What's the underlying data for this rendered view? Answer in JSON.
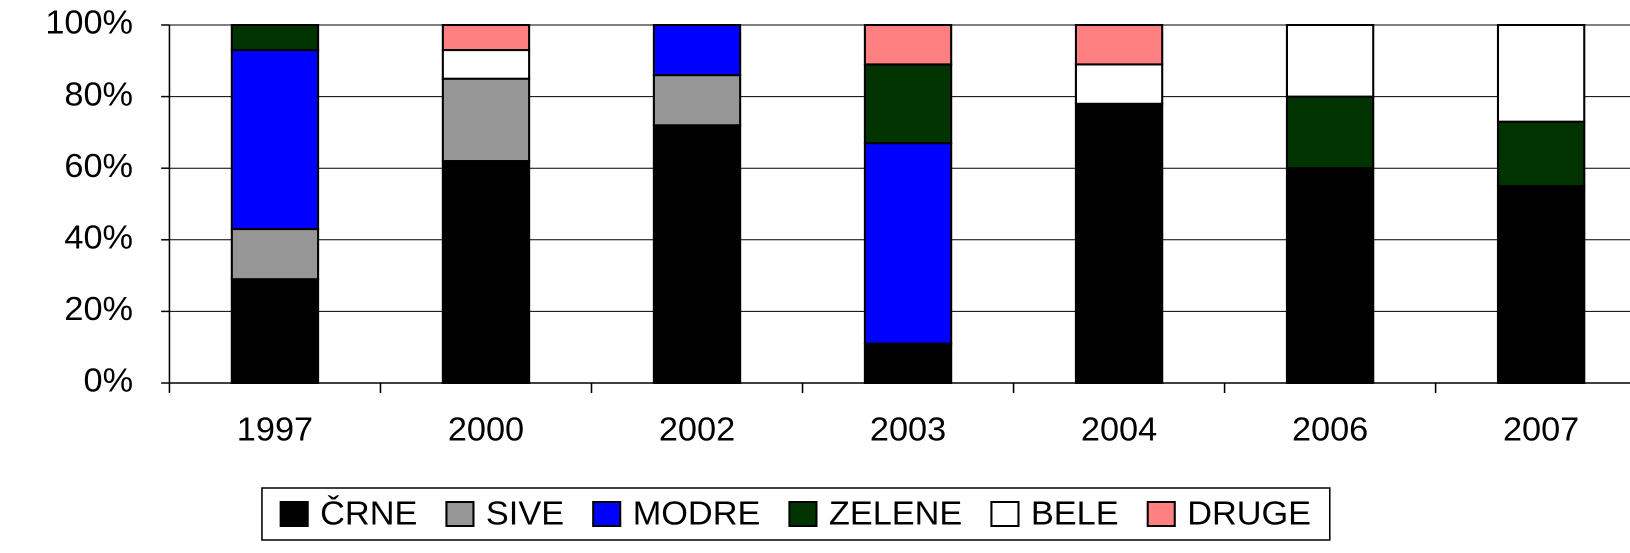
{
  "chart_data": {
    "type": "stacked_bar",
    "categories": [
      "1997",
      "2000",
      "2002",
      "2003",
      "2004",
      "2006",
      "2007"
    ],
    "series": [
      {
        "name": "ČRNE",
        "color": "#000000",
        "values": [
          29,
          62,
          72,
          11,
          78,
          60,
          55
        ]
      },
      {
        "name": "SIVE",
        "color": "#969696",
        "values": [
          14,
          23,
          14,
          0,
          0,
          0,
          0
        ]
      },
      {
        "name": "MODRE",
        "color": "#0000ff",
        "values": [
          50,
          0,
          14,
          56,
          0,
          0,
          0
        ]
      },
      {
        "name": "ZELENE",
        "color": "#003300",
        "values": [
          7,
          0,
          0,
          22,
          0,
          20,
          18
        ]
      },
      {
        "name": "BELE",
        "color": "#ffffff",
        "values": [
          0,
          8,
          0,
          0,
          11,
          20,
          27
        ]
      },
      {
        "name": "DRUGE",
        "color": "#ff8080",
        "values": [
          0,
          7,
          0,
          11,
          11,
          0,
          0
        ]
      }
    ],
    "ylim": [
      0,
      100
    ],
    "yticks": [
      {
        "value": 0,
        "label": "0%"
      },
      {
        "value": 20,
        "label": "20%"
      },
      {
        "value": 40,
        "label": "40%"
      },
      {
        "value": 60,
        "label": "60%"
      },
      {
        "value": 80,
        "label": "80%"
      },
      {
        "value": 100,
        "label": "100%"
      }
    ],
    "grid": true,
    "legend": "bottom"
  }
}
